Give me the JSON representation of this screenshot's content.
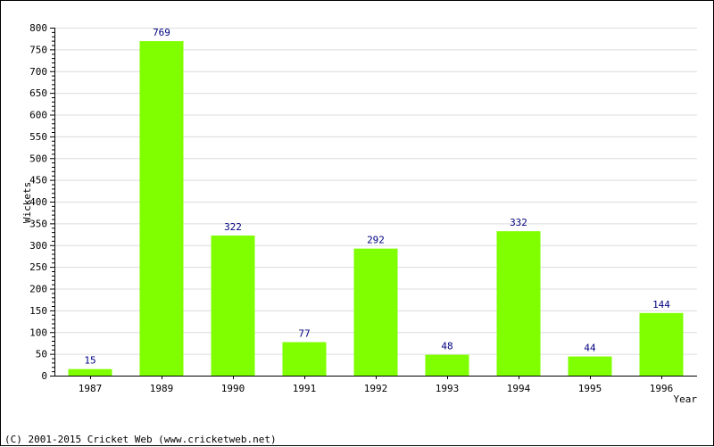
{
  "chart_data": {
    "type": "bar",
    "categories": [
      "1987",
      "1989",
      "1990",
      "1991",
      "1992",
      "1993",
      "1994",
      "1995",
      "1996"
    ],
    "values": [
      15,
      769,
      322,
      77,
      292,
      48,
      332,
      44,
      144
    ],
    "xlabel": "Year",
    "ylabel": "Wickets",
    "ylim": [
      0,
      800
    ],
    "y_ticks": [
      0,
      50,
      100,
      150,
      200,
      250,
      300,
      350,
      400,
      450,
      500,
      550,
      600,
      650,
      700,
      750,
      800
    ],
    "grid": true,
    "data_labels": true,
    "bar_color": "#7fff00",
    "label_color": "#000080"
  },
  "footer": "(C) 2001-2015 Cricket Web (www.cricketweb.net)"
}
